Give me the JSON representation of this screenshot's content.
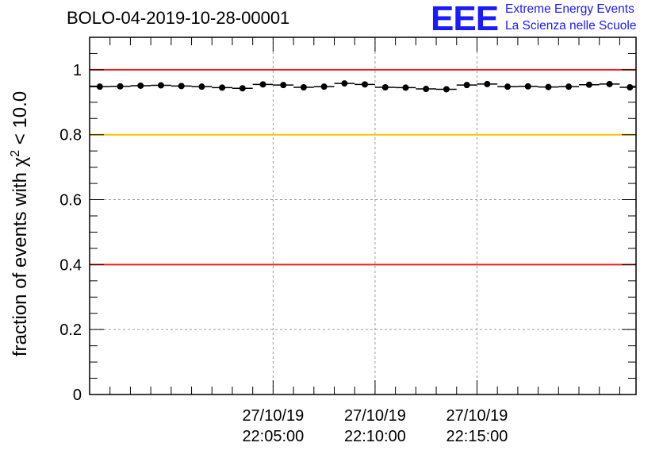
{
  "header": {
    "run_title": "BOLO-04-2019-10-28-00001",
    "logo_text": "EEE",
    "logo_line1": "Extreme Energy Events",
    "logo_line2": "La Scienza nelle Scuole",
    "logo_color": "#1a1aff"
  },
  "chart_data": {
    "type": "scatter",
    "title": "BOLO-04-2019-10-28-00001",
    "xlabel": "",
    "ylabel_prefix": "fraction of events with ",
    "ylabel_symbol": "χ",
    "ylabel_exponent": "2",
    "ylabel_suffix": " < 10.0",
    "ylim": [
      0,
      1.1
    ],
    "xlim": [
      -4.0,
      22.8
    ],
    "x_unit": "minutes after 22:00:00 on 27/10/19",
    "y_ticks": [
      {
        "value": 0,
        "label": "0"
      },
      {
        "value": 0.2,
        "label": "0.2"
      },
      {
        "value": 0.4,
        "label": "0.4"
      },
      {
        "value": 0.6,
        "label": "0.6"
      },
      {
        "value": 0.8,
        "label": "0.8"
      },
      {
        "value": 1.0,
        "label": "1"
      }
    ],
    "x_ticks": [
      {
        "value": 5,
        "date": "27/10/19",
        "time": "22:05:00"
      },
      {
        "value": 10,
        "date": "27/10/19",
        "time": "22:10:00"
      },
      {
        "value": 15,
        "date": "27/10/19",
        "time": "22:15:00"
      }
    ],
    "grid": true,
    "reference_lines": [
      {
        "value": 1.0,
        "color": "#e8211d"
      },
      {
        "value": 0.8,
        "color": "#f5c400"
      },
      {
        "value": 0.4,
        "color": "#e8211d"
      }
    ],
    "bin_width": 1.0,
    "series": [
      {
        "name": "fraction",
        "color": "#000000",
        "x": [
          -3.5,
          -2.5,
          -1.5,
          -0.5,
          0.5,
          1.5,
          2.5,
          3.5,
          4.5,
          5.5,
          6.5,
          7.5,
          8.5,
          9.5,
          10.5,
          11.5,
          12.5,
          13.5,
          14.5,
          15.5,
          16.5,
          17.5,
          18.5,
          19.5,
          20.5,
          21.5,
          22.5
        ],
        "y": [
          0.948,
          0.949,
          0.951,
          0.952,
          0.95,
          0.948,
          0.945,
          0.943,
          0.955,
          0.953,
          0.946,
          0.948,
          0.958,
          0.955,
          0.946,
          0.945,
          0.941,
          0.94,
          0.953,
          0.956,
          0.948,
          0.949,
          0.947,
          0.948,
          0.954,
          0.956,
          0.946
        ]
      }
    ]
  }
}
